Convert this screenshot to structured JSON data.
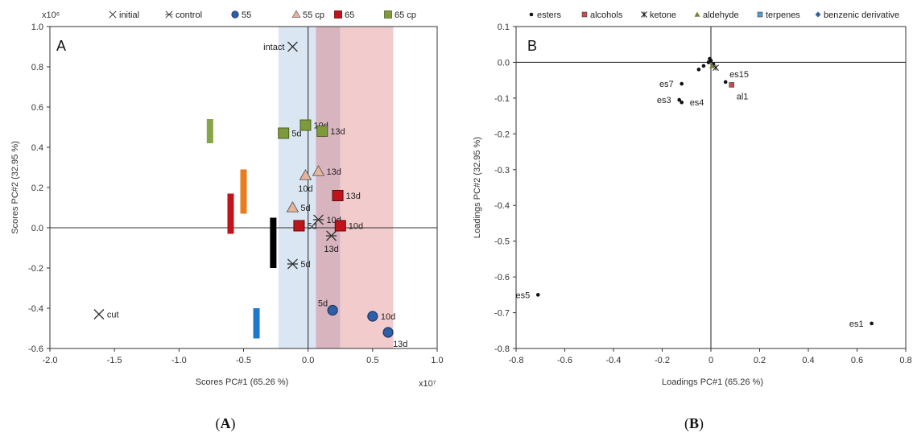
{
  "colors": {
    "blue_band": "#dbe6f3",
    "red_band": "#f2cccd",
    "overlap_band": "#d8b4bf",
    "c55": "#2d5fa8",
    "c55cp": "#e8b49a",
    "c65": "#c0141a",
    "c65cp": "#7d9b3c",
    "axis": "#333333",
    "es": "#111111",
    "al": "#c0504d",
    "te": "#4f9fd1",
    "be": "#2e5fa8"
  },
  "chart_data": [
    {
      "type": "scatter",
      "panel_label": "A",
      "caption_letter": "A",
      "xlabel": "Scores PC#1 (65.26 %)",
      "ylabel": "Scores PC#2 (32.95 %)",
      "x_multiplier": "x10⁷",
      "y_multiplier": "x10⁶",
      "xlim": [
        -2.0,
        1.0
      ],
      "ylim": [
        -0.6,
        1.0
      ],
      "xticks": [
        -2.0,
        -1.5,
        -1.0,
        -0.5,
        0.0,
        0.5,
        1.0
      ],
      "yticks": [
        -0.6,
        -0.4,
        -0.2,
        0.0,
        0.2,
        0.4,
        0.6,
        0.8,
        1.0
      ],
      "xtick_labels": [
        "-2.0",
        "-1.5",
        "-1.0",
        "-0.5",
        "0.0",
        "0.5",
        "1.0"
      ],
      "ytick_labels": [
        "-0.6",
        "-0.4",
        "-0.2",
        "0.0",
        "0.2",
        "0.4",
        "0.6",
        "0.8",
        "1.0"
      ],
      "legend_position": "top",
      "legend": [
        {
          "label": "initial",
          "marker": "x"
        },
        {
          "label": "control",
          "marker": "star"
        },
        {
          "label": "55",
          "marker": "circle"
        },
        {
          "label": "55 cp",
          "marker": "triangle"
        },
        {
          "label": "65",
          "marker": "square65"
        },
        {
          "label": "65 cp",
          "marker": "square65cp"
        }
      ],
      "bands": [
        {
          "x0": -0.23,
          "x1": 0.06,
          "color": "blue_band"
        },
        {
          "x0": 0.06,
          "x1": 0.25,
          "color": "overlap_band"
        },
        {
          "x0": 0.25,
          "x1": 0.66,
          "color": "red_band"
        }
      ],
      "vbars": [
        {
          "x": -0.76,
          "y0": 0.42,
          "y1": 0.54,
          "color": "#86a547"
        },
        {
          "x": -0.5,
          "y0": 0.07,
          "y1": 0.29,
          "color": "#e87c1e"
        },
        {
          "x": -0.6,
          "y0": -0.03,
          "y1": 0.17,
          "color": "#c0141a"
        },
        {
          "x": -0.27,
          "y0": -0.2,
          "y1": 0.05,
          "color": "#000000"
        },
        {
          "x": -0.4,
          "y0": -0.55,
          "y1": -0.4,
          "color": "#1f77c9"
        }
      ],
      "series": [
        {
          "name": "initial",
          "marker": "x",
          "points": [
            {
              "x": -0.12,
              "y": 0.9,
              "label": "intact",
              "pos": "left"
            },
            {
              "x": -1.62,
              "y": -0.43,
              "label": "cut",
              "pos": "right"
            }
          ]
        },
        {
          "name": "control",
          "marker": "star",
          "points": [
            {
              "x": -0.12,
              "y": -0.18,
              "label": "5d",
              "pos": "right"
            },
            {
              "x": 0.08,
              "y": 0.04,
              "label": "10d",
              "pos": "right"
            },
            {
              "x": 0.18,
              "y": -0.04,
              "label": "13d",
              "pos": "below"
            }
          ]
        },
        {
          "name": "55",
          "marker": "circle",
          "points": [
            {
              "x": 0.19,
              "y": -0.41,
              "label": "5d",
              "pos": "upleft"
            },
            {
              "x": 0.5,
              "y": -0.44,
              "label": "10d",
              "pos": "right"
            },
            {
              "x": 0.62,
              "y": -0.52,
              "label": "13d",
              "pos": "belowright"
            }
          ]
        },
        {
          "name": "55 cp",
          "marker": "triangle",
          "points": [
            {
              "x": -0.12,
              "y": 0.1,
              "label": "5d",
              "pos": "right"
            },
            {
              "x": -0.02,
              "y": 0.26,
              "label": "10d",
              "pos": "below"
            },
            {
              "x": 0.08,
              "y": 0.28,
              "label": "13d",
              "pos": "right"
            }
          ]
        },
        {
          "name": "65",
          "marker": "square65",
          "points": [
            {
              "x": -0.07,
              "y": 0.01,
              "label": "5d",
              "pos": "right"
            },
            {
              "x": 0.25,
              "y": 0.01,
              "label": "10d",
              "pos": "right"
            },
            {
              "x": 0.23,
              "y": 0.16,
              "label": "13d",
              "pos": "right"
            }
          ]
        },
        {
          "name": "65 cp",
          "marker": "square65cp",
          "points": [
            {
              "x": -0.19,
              "y": 0.47,
              "label": "5d",
              "pos": "right"
            },
            {
              "x": -0.02,
              "y": 0.51,
              "label": "10d",
              "pos": "right"
            },
            {
              "x": 0.11,
              "y": 0.48,
              "label": "13d",
              "pos": "right"
            }
          ]
        }
      ]
    },
    {
      "type": "scatter",
      "panel_label": "B",
      "caption_letter": "B",
      "xlabel": "Loadings PC#1 (65.26 %)",
      "ylabel": "Loadings PC#2 (32.95 %)",
      "xlim": [
        -0.8,
        0.8
      ],
      "ylim": [
        -0.8,
        0.1
      ],
      "xticks": [
        -0.8,
        -0.6,
        -0.4,
        -0.2,
        0.0,
        0.2,
        0.4,
        0.6,
        0.8
      ],
      "yticks": [
        -0.8,
        -0.7,
        -0.6,
        -0.5,
        -0.4,
        -0.3,
        -0.2,
        -0.1,
        0.0,
        0.1
      ],
      "xtick_labels": [
        "-0.8",
        "-0.6",
        "-0.4",
        "-0.2",
        "0",
        "0.2",
        "0.4",
        "0.6",
        "0.8"
      ],
      "ytick_labels": [
        "-0.8",
        "-0.7",
        "-0.6",
        "-0.5",
        "-0.4",
        "-0.3",
        "-0.2",
        "-0.1",
        "0.0",
        "0.1"
      ],
      "legend_position": "top",
      "legend": [
        {
          "label": "esters",
          "marker": "dot",
          "color": "es"
        },
        {
          "label": "alcohols",
          "marker": "sq",
          "color": "al"
        },
        {
          "label": "ketone",
          "marker": "star6",
          "color": "es"
        },
        {
          "label": "aldehyde",
          "marker": "tri",
          "color": "es"
        },
        {
          "label": "terpenes",
          "marker": "sq",
          "color": "te"
        },
        {
          "label": "benzenic derivative",
          "marker": "diamond",
          "color": "be"
        }
      ],
      "points": [
        {
          "x": 0.66,
          "y": -0.73,
          "label": "es1",
          "pos": "left",
          "marker": "dot",
          "color": "es"
        },
        {
          "x": -0.71,
          "y": -0.65,
          "label": "es5",
          "pos": "left",
          "marker": "dot",
          "color": "es"
        },
        {
          "x": -0.12,
          "y": -0.06,
          "label": "es7",
          "pos": "left",
          "marker": "dot",
          "color": "es"
        },
        {
          "x": -0.13,
          "y": -0.105,
          "label": "es3",
          "pos": "left",
          "marker": "dot",
          "color": "es"
        },
        {
          "x": -0.12,
          "y": -0.112,
          "label": "es4",
          "pos": "right",
          "marker": "dot",
          "color": "es"
        },
        {
          "x": 0.06,
          "y": -0.055,
          "label": "es15",
          "pos": "upright",
          "marker": "dot",
          "color": "es"
        },
        {
          "x": 0.085,
          "y": -0.063,
          "label": "al1",
          "pos": "belowright",
          "marker": "sq",
          "color": "al"
        },
        {
          "x": -0.05,
          "y": -0.02,
          "label": "",
          "marker": "dot",
          "color": "es"
        },
        {
          "x": -0.03,
          "y": -0.01,
          "label": "",
          "marker": "dot",
          "color": "es"
        },
        {
          "x": -0.01,
          "y": 0.0,
          "label": "",
          "marker": "dot",
          "color": "es"
        },
        {
          "x": 0.0,
          "y": 0.005,
          "label": "",
          "marker": "dot",
          "color": "es"
        },
        {
          "x": 0.01,
          "y": -0.005,
          "label": "",
          "marker": "dot",
          "color": "es"
        },
        {
          "x": 0.02,
          "y": -0.015,
          "label": "",
          "marker": "star6",
          "color": "es"
        },
        {
          "x": 0.005,
          "y": -0.01,
          "label": "",
          "marker": "tri",
          "color": "es"
        },
        {
          "x": -0.005,
          "y": 0.01,
          "label": "",
          "marker": "dot",
          "color": "es"
        }
      ]
    }
  ]
}
